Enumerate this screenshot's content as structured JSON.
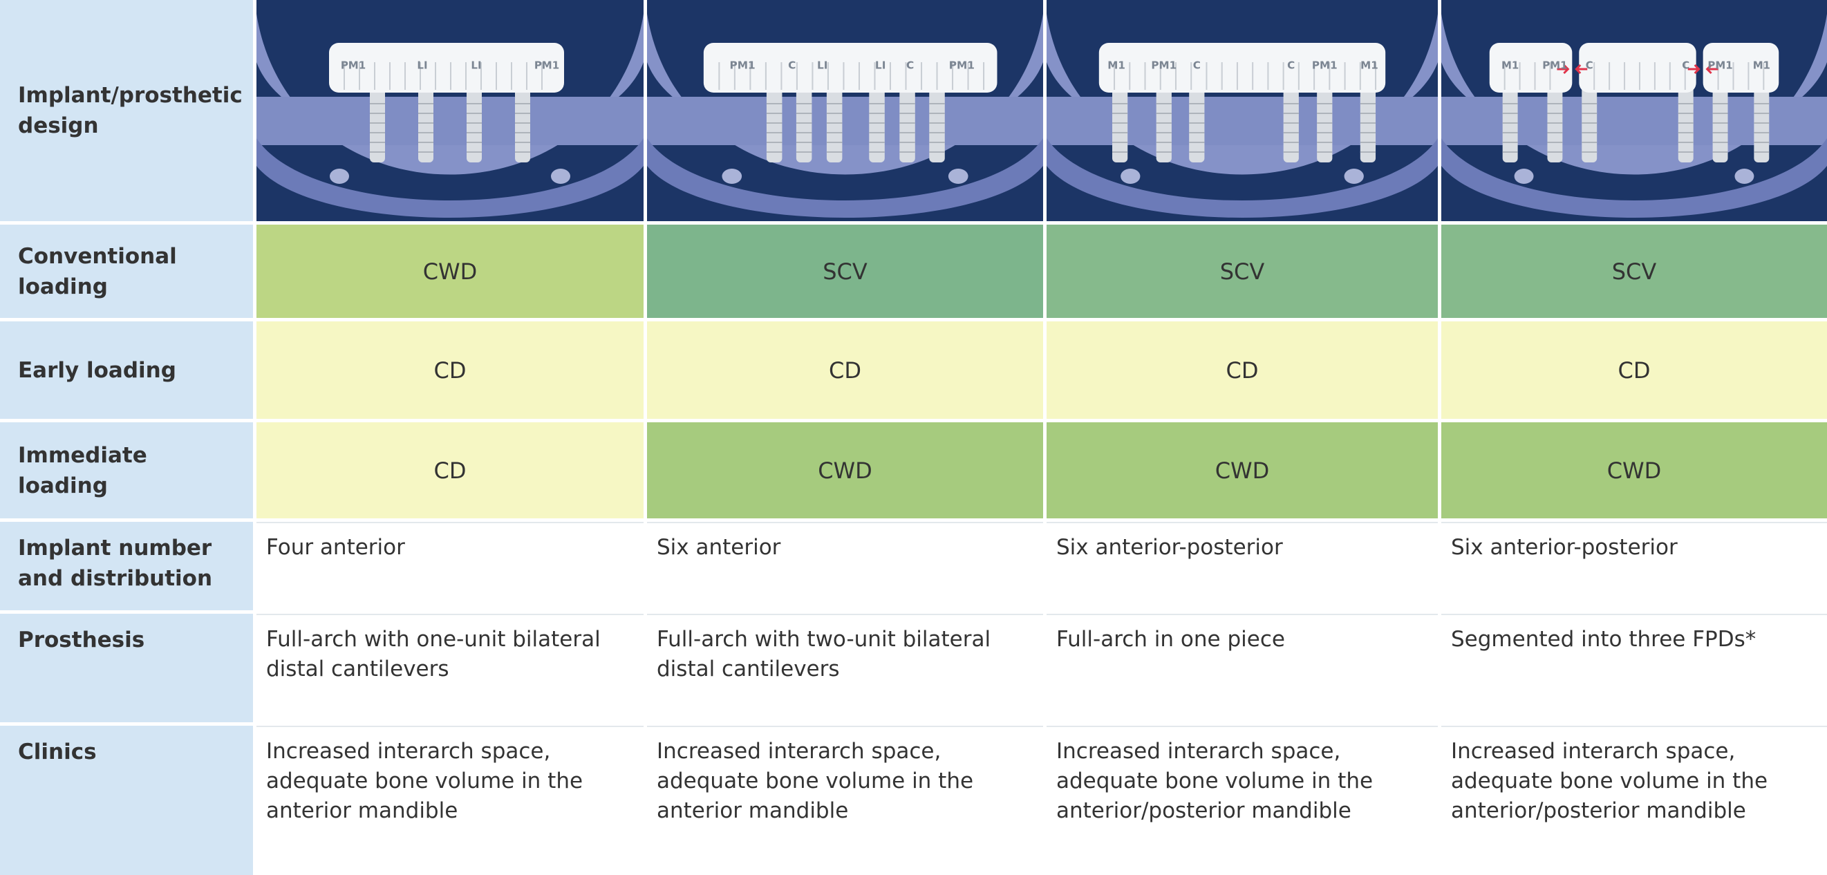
{
  "table": {
    "row_headers": [
      "Implant/prosthetic design",
      "Conventional loading",
      "Early loading",
      "Immediate loading",
      "Implant number and distribution",
      "Prosthesis",
      "Clinics"
    ],
    "columns": [
      {
        "design_labels": [
          "PM1",
          "LI",
          "LI",
          "PM1"
        ],
        "conventional_loading": {
          "text": "CWD",
          "color": "#bcd684"
        },
        "early_loading": {
          "text": "CD",
          "color": "#f6f7c4"
        },
        "immediate_loading": {
          "text": "CD",
          "color": "#f6f7c4"
        },
        "implant_number": "Four anterior",
        "prosthesis": "Full-arch with one-unit bilateral distal cantilevers",
        "clinics": "Increased interarch space, adequate bone volume in the anterior mandible"
      },
      {
        "design_labels": [
          "PM1",
          "C",
          "LI",
          "LI",
          "C",
          "PM1"
        ],
        "conventional_loading": {
          "text": "SCV",
          "color": "#7db58c"
        },
        "early_loading": {
          "text": "CD",
          "color": "#f6f7c4"
        },
        "immediate_loading": {
          "text": "CWD",
          "color": "#a6cb7e"
        },
        "implant_number": "Six anterior",
        "prosthesis": "Full-arch with two-unit bilateral distal cantilevers",
        "clinics": "Increased interarch space, adequate bone volume in the anterior mandible"
      },
      {
        "design_labels": [
          "M1",
          "PM1",
          "C",
          "C",
          "PM1",
          "M1"
        ],
        "conventional_loading": {
          "text": "SCV",
          "color": "#86ba8c"
        },
        "early_loading": {
          "text": "CD",
          "color": "#f6f7c4"
        },
        "immediate_loading": {
          "text": "CWD",
          "color": "#a6cb7e"
        },
        "implant_number": "Six anterior-posterior",
        "prosthesis": "Full-arch in one piece",
        "clinics": "Increased interarch space, adequate bone volume in the anterior/posterior mandible"
      },
      {
        "design_labels": [
          "M1",
          "PM1",
          "C",
          "C",
          "PM1",
          "M1"
        ],
        "conventional_loading": {
          "text": "SCV",
          "color": "#86ba8c"
        },
        "early_loading": {
          "text": "CD",
          "color": "#f6f7c4"
        },
        "immediate_loading": {
          "text": "CWD",
          "color": "#a6cb7e"
        },
        "implant_number": "Six anterior-posterior",
        "prosthesis": "Segmented into three FPDs*",
        "clinics": "Increased interarch space, adequate bone volume in the anterior/posterior mandible"
      }
    ]
  }
}
